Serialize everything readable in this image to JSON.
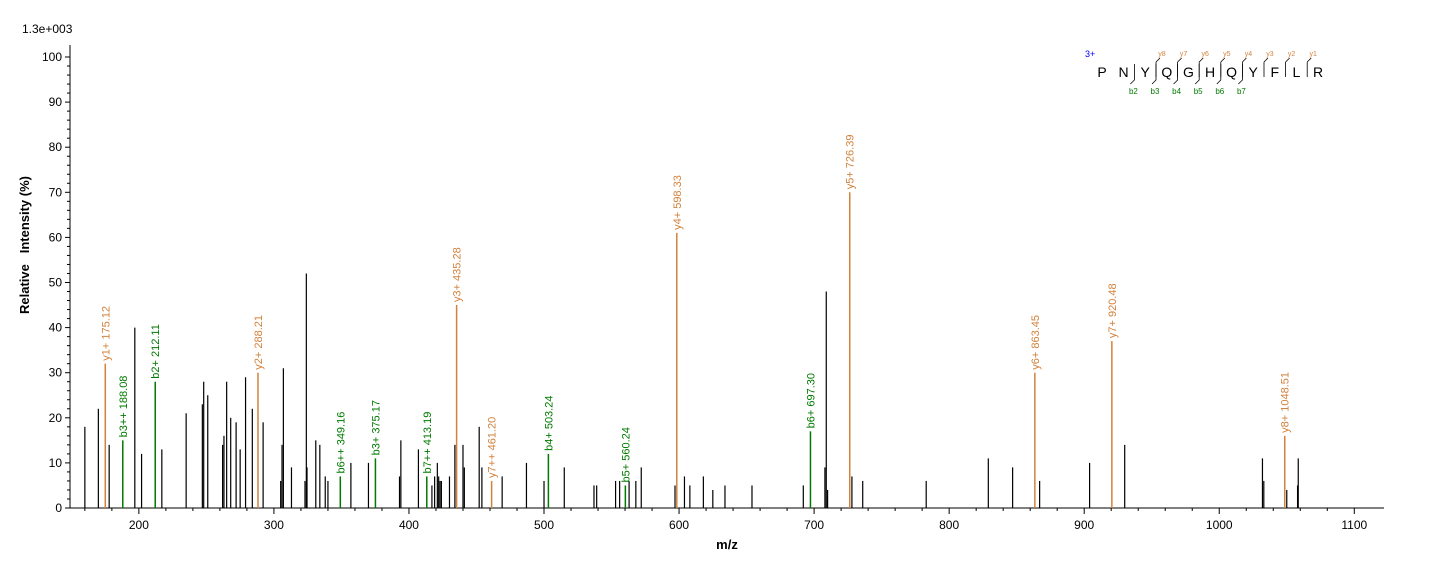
{
  "chart_data": {
    "type": "bar",
    "scale_label": "1.3e+003",
    "xlabel": "m/z",
    "ylabel": "Relative   Intensity (%)",
    "xlim": [
      150,
      1120
    ],
    "ylim": [
      0,
      100
    ],
    "x_ticks": [
      200,
      300,
      400,
      500,
      600,
      700,
      800,
      900,
      1000,
      1100
    ],
    "y_ticks": [
      0,
      10,
      20,
      30,
      40,
      50,
      60,
      70,
      80,
      90,
      100
    ],
    "grid": false,
    "colors": {
      "b_ion": "#007a00",
      "y_ion": "#d2823c",
      "unassigned": "#000000",
      "charge": "#0000ff"
    },
    "peaks": [
      [
        160,
        18
      ],
      [
        170,
        22
      ],
      [
        178,
        14
      ],
      [
        197,
        40
      ],
      [
        202,
        12
      ],
      [
        217,
        13
      ],
      [
        235,
        21
      ],
      [
        247,
        23
      ],
      [
        248,
        28
      ],
      [
        251,
        25
      ],
      [
        262,
        14
      ],
      [
        263,
        16
      ],
      [
        265,
        28
      ],
      [
        268,
        20
      ],
      [
        272,
        19
      ],
      [
        275,
        13
      ],
      [
        279,
        29
      ],
      [
        284,
        22
      ],
      [
        292,
        19
      ],
      [
        305,
        6
      ],
      [
        306,
        14
      ],
      [
        307,
        31
      ],
      [
        313,
        9
      ],
      [
        323,
        6
      ],
      [
        324,
        52
      ],
      [
        324.5,
        9
      ],
      [
        331,
        15
      ],
      [
        334,
        14
      ],
      [
        338,
        7
      ],
      [
        340,
        6
      ],
      [
        357,
        10
      ],
      [
        370,
        10
      ],
      [
        393,
        7
      ],
      [
        394,
        15
      ],
      [
        407,
        13
      ],
      [
        417,
        5
      ],
      [
        419,
        7
      ],
      [
        421,
        10
      ],
      [
        422,
        7
      ],
      [
        423,
        6
      ],
      [
        424,
        6
      ],
      [
        430,
        7
      ],
      [
        434,
        14
      ],
      [
        440,
        14
      ],
      [
        441,
        9
      ],
      [
        452,
        18
      ],
      [
        454,
        9
      ],
      [
        469,
        7
      ],
      [
        487,
        10
      ],
      [
        500,
        6
      ],
      [
        515,
        9
      ],
      [
        537,
        5
      ],
      [
        539,
        5
      ],
      [
        553,
        6
      ],
      [
        556,
        6
      ],
      [
        563,
        6
      ],
      [
        568,
        6
      ],
      [
        572,
        9
      ],
      [
        597,
        5
      ],
      [
        604,
        7
      ],
      [
        608,
        5
      ],
      [
        618,
        7
      ],
      [
        625,
        4
      ],
      [
        634,
        5
      ],
      [
        654,
        5
      ],
      [
        692,
        5
      ],
      [
        708,
        9
      ],
      [
        709,
        48
      ],
      [
        710,
        4
      ],
      [
        728,
        7
      ],
      [
        736,
        6
      ],
      [
        783,
        6
      ],
      [
        829,
        11
      ],
      [
        847,
        9
      ],
      [
        867,
        6
      ],
      [
        904,
        10
      ],
      [
        930,
        14
      ],
      [
        1032,
        11
      ],
      [
        1033,
        6
      ],
      [
        1050,
        4
      ],
      [
        1058,
        5
      ],
      [
        1058.5,
        11
      ]
    ],
    "annotations": [
      {
        "mz": 175.12,
        "intensity": 32,
        "label": "y1+ 175.12",
        "ion": "y"
      },
      {
        "mz": 188.08,
        "intensity": 15,
        "label": "b3++ 188.08",
        "ion": "b"
      },
      {
        "mz": 212.11,
        "intensity": 28,
        "label": "b2+ 212.11",
        "ion": "b"
      },
      {
        "mz": 288.21,
        "intensity": 30,
        "label": "y2+ 288.21",
        "ion": "y"
      },
      {
        "mz": 349.16,
        "intensity": 7,
        "label": "b6++ 349.16",
        "ion": "b"
      },
      {
        "mz": 375.17,
        "intensity": 11,
        "label": "b3+ 375.17",
        "ion": "b"
      },
      {
        "mz": 413.19,
        "intensity": 7,
        "label": "b7++ 413.19",
        "ion": "b"
      },
      {
        "mz": 435.28,
        "intensity": 45,
        "label": "y3+ 435.28",
        "ion": "y"
      },
      {
        "mz": 461.2,
        "intensity": 6,
        "label": "y7++ 461.20",
        "ion": "y"
      },
      {
        "mz": 503.24,
        "intensity": 12,
        "label": "b4+ 503.24",
        "ion": "b"
      },
      {
        "mz": 560.24,
        "intensity": 5,
        "label": "b5+ 560.24",
        "ion": "b"
      },
      {
        "mz": 598.33,
        "intensity": 61,
        "label": "y4+ 598.33",
        "ion": "y"
      },
      {
        "mz": 697.3,
        "intensity": 17,
        "label": "b6+ 697.30",
        "ion": "b"
      },
      {
        "mz": 726.39,
        "intensity": 70,
        "label": "y5+ 726.39",
        "ion": "y"
      },
      {
        "mz": 863.45,
        "intensity": 30,
        "label": "y6+ 863.45",
        "ion": "y"
      },
      {
        "mz": 920.48,
        "intensity": 37,
        "label": "y7+ 920.48",
        "ion": "y"
      },
      {
        "mz": 1048.51,
        "intensity": 16,
        "label": "y8+ 1048.51",
        "ion": "y"
      }
    ],
    "sequence": {
      "charge": "3+",
      "residues": [
        "P",
        "N",
        "Y",
        "Q",
        "G",
        "H",
        "Q",
        "Y",
        "F",
        "L",
        "R"
      ],
      "y_labels": [
        "y8",
        "y7",
        "y6",
        "y5",
        "y4",
        "y3",
        "y2",
        "y1"
      ],
      "b_labels": [
        "b2",
        "b3",
        "b4",
        "b5",
        "b6",
        "b7"
      ]
    }
  }
}
